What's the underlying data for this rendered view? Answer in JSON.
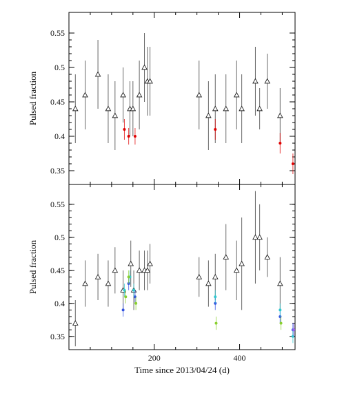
{
  "chart_data": [
    {
      "type": "scatter",
      "panel": "top",
      "xlabel": "",
      "ylabel": "Pulsed fraction",
      "xlim": [
        0,
        530
      ],
      "ylim": [
        0.33,
        0.58
      ],
      "y_ticks": [
        "0.35",
        "0.4",
        "0.45",
        "0.5",
        "0.55"
      ],
      "grid": false,
      "series": [
        {
          "marker": "triangle-open",
          "color": "#333333",
          "points": [
            {
              "x": 15,
              "y": 0.44,
              "err": 0.05
            },
            {
              "x": 38,
              "y": 0.46,
              "err": 0.05
            },
            {
              "x": 68,
              "y": 0.49,
              "err": 0.05
            },
            {
              "x": 92,
              "y": 0.44,
              "err": 0.05
            },
            {
              "x": 108,
              "y": 0.43,
              "err": 0.05
            },
            {
              "x": 127,
              "y": 0.46,
              "err": 0.04
            },
            {
              "x": 143,
              "y": 0.44,
              "err": 0.04
            },
            {
              "x": 150,
              "y": 0.44,
              "err": 0.04
            },
            {
              "x": 165,
              "y": 0.46,
              "err": 0.05
            },
            {
              "x": 177,
              "y": 0.5,
              "err": 0.05
            },
            {
              "x": 184,
              "y": 0.48,
              "err": 0.05
            },
            {
              "x": 190,
              "y": 0.48,
              "err": 0.05
            },
            {
              "x": 305,
              "y": 0.46,
              "err": 0.05
            },
            {
              "x": 327,
              "y": 0.43,
              "err": 0.05
            },
            {
              "x": 343,
              "y": 0.44,
              "err": 0.05
            },
            {
              "x": 368,
              "y": 0.44,
              "err": 0.05
            },
            {
              "x": 393,
              "y": 0.46,
              "err": 0.05
            },
            {
              "x": 405,
              "y": 0.44,
              "err": 0.05
            },
            {
              "x": 437,
              "y": 0.48,
              "err": 0.05
            },
            {
              "x": 447,
              "y": 0.44,
              "err": 0.03
            },
            {
              "x": 465,
              "y": 0.48,
              "err": 0.04
            },
            {
              "x": 495,
              "y": 0.43,
              "err": 0.04
            }
          ]
        },
        {
          "marker": "dot",
          "color": "#e00000",
          "points": [
            {
              "x": 130,
              "y": 0.41,
              "err": 0.015
            },
            {
              "x": 140,
              "y": 0.4,
              "err": 0.012
            },
            {
              "x": 155,
              "y": 0.4,
              "err": 0.012
            },
            {
              "x": 343,
              "y": 0.41,
              "err": 0.015
            },
            {
              "x": 495,
              "y": 0.39,
              "err": 0.015
            },
            {
              "x": 525,
              "y": 0.36,
              "err": 0.015
            }
          ]
        }
      ]
    },
    {
      "type": "scatter",
      "panel": "bottom",
      "xlabel": "Time since 2013/04/24 (d)",
      "ylabel": "Pulsed fraction",
      "xlim": [
        0,
        530
      ],
      "ylim": [
        0.33,
        0.58
      ],
      "x_ticks": [
        "200",
        "400"
      ],
      "y_ticks": [
        "0.35",
        "0.4",
        "0.45",
        "0.5",
        "0.55"
      ],
      "grid": false,
      "series": [
        {
          "marker": "triangle-open",
          "color": "#333333",
          "points": [
            {
              "x": 15,
              "y": 0.37,
              "err": 0.035
            },
            {
              "x": 38,
              "y": 0.43,
              "err": 0.035
            },
            {
              "x": 68,
              "y": 0.44,
              "err": 0.035
            },
            {
              "x": 92,
              "y": 0.43,
              "err": 0.035
            },
            {
              "x": 108,
              "y": 0.45,
              "err": 0.035
            },
            {
              "x": 127,
              "y": 0.42,
              "err": 0.03
            },
            {
              "x": 145,
              "y": 0.46,
              "err": 0.035
            },
            {
              "x": 152,
              "y": 0.42,
              "err": 0.03
            },
            {
              "x": 165,
              "y": 0.45,
              "err": 0.03
            },
            {
              "x": 177,
              "y": 0.45,
              "err": 0.03
            },
            {
              "x": 184,
              "y": 0.45,
              "err": 0.03
            },
            {
              "x": 190,
              "y": 0.46,
              "err": 0.03
            },
            {
              "x": 305,
              "y": 0.44,
              "err": 0.03
            },
            {
              "x": 327,
              "y": 0.43,
              "err": 0.035
            },
            {
              "x": 343,
              "y": 0.44,
              "err": 0.035
            },
            {
              "x": 368,
              "y": 0.47,
              "err": 0.05
            },
            {
              "x": 393,
              "y": 0.45,
              "err": 0.045
            },
            {
              "x": 405,
              "y": 0.46,
              "err": 0.07
            },
            {
              "x": 437,
              "y": 0.5,
              "err": 0.07
            },
            {
              "x": 447,
              "y": 0.5,
              "err": 0.05
            },
            {
              "x": 465,
              "y": 0.47,
              "err": 0.03
            },
            {
              "x": 495,
              "y": 0.43,
              "err": 0.04
            }
          ]
        },
        {
          "marker": "dot",
          "color": "#3050e0",
          "points": [
            {
              "x": 127,
              "y": 0.39,
              "err": 0.01
            },
            {
              "x": 140,
              "y": 0.43,
              "err": 0.01
            },
            {
              "x": 155,
              "y": 0.41,
              "err": 0.01
            },
            {
              "x": 343,
              "y": 0.4,
              "err": 0.01
            },
            {
              "x": 495,
              "y": 0.38,
              "err": 0.01
            },
            {
              "x": 525,
              "y": 0.36,
              "err": 0.01
            }
          ]
        },
        {
          "marker": "dot",
          "color": "#30c8d0",
          "points": [
            {
              "x": 130,
              "y": 0.42,
              "err": 0.01
            },
            {
              "x": 143,
              "y": 0.44,
              "err": 0.01
            },
            {
              "x": 152,
              "y": 0.42,
              "err": 0.01
            },
            {
              "x": 343,
              "y": 0.41,
              "err": 0.01
            },
            {
              "x": 495,
              "y": 0.39,
              "err": 0.01
            },
            {
              "x": 525,
              "y": 0.35,
              "err": 0.01
            }
          ]
        },
        {
          "marker": "dot",
          "color": "#8ad030",
          "points": [
            {
              "x": 133,
              "y": 0.41,
              "err": 0.01
            },
            {
              "x": 140,
              "y": 0.44,
              "err": 0.01
            },
            {
              "x": 157,
              "y": 0.4,
              "err": 0.01
            },
            {
              "x": 345,
              "y": 0.37,
              "err": 0.01
            },
            {
              "x": 497,
              "y": 0.37,
              "err": 0.01
            }
          ]
        },
        {
          "marker": "dot",
          "color": "#9966ee",
          "points": [
            {
              "x": 527,
              "y": 0.36,
              "err": 0.01
            }
          ]
        }
      ]
    }
  ]
}
